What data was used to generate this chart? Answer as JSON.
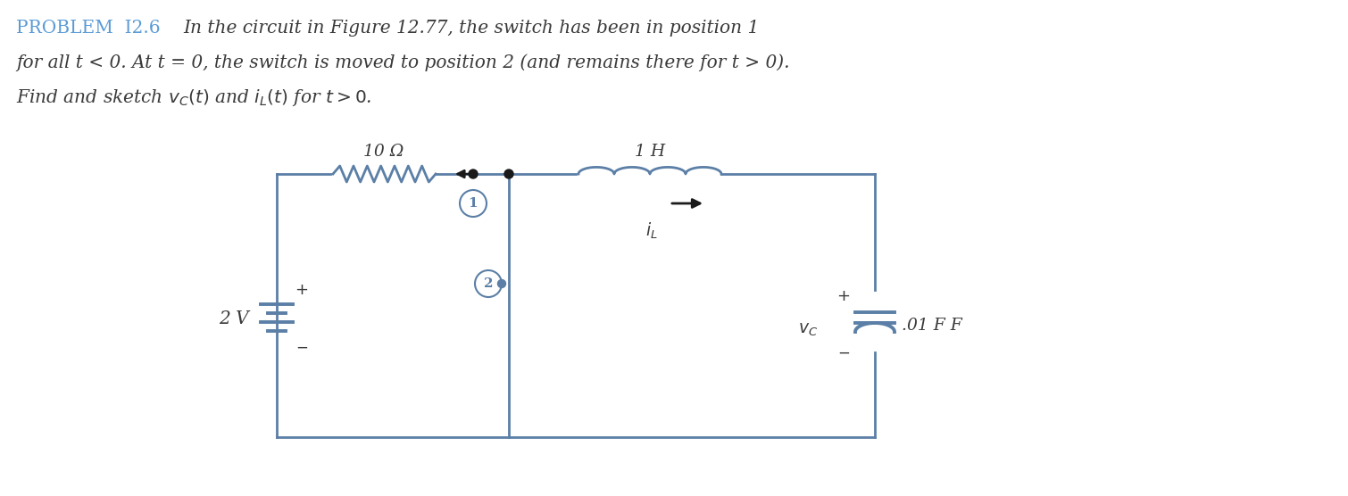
{
  "background_color": "#ffffff",
  "problem_label": "PROBLEM  I2.6",
  "problem_label_color": "#5b9bd5",
  "text_color": "#3a3a3a",
  "line1": "In the circuit in Figure 12.77, the switch has been in position 1",
  "line2": "for all t < 0. At t = 0, the switch is moved to position 2 (and remains there for t > 0).",
  "line3": "Find and sketch v_C(t) and i_L(t) for t > 0.",
  "circuit_color": "#5b7fa6",
  "circuit_dark": "#1a1a1a",
  "resistor_label": "10 Ω",
  "inductor_label": "1 H",
  "capacitor_label": ".01 F",
  "voltage_label": "2 V",
  "switch1_label": "1",
  "switch2_label": "2",
  "font_size_text": 14.5,
  "font_size_circuit": 13.5
}
